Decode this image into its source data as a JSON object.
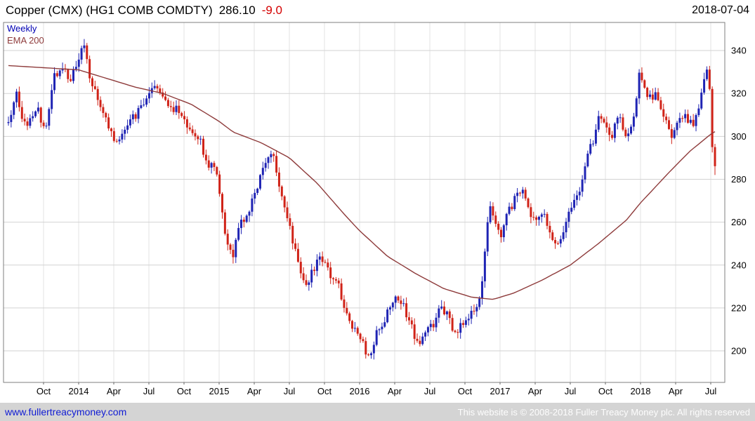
{
  "header": {
    "instrument": "Copper (CMX) (HG1 COMB COMDTY)",
    "price": "286.10",
    "change": "-9.0",
    "date": "2018-07-04"
  },
  "legend": {
    "frequency": "Weekly",
    "overlay": "EMA 200"
  },
  "footer": {
    "site_link": "www.fullertreacymoney.com",
    "copyright": "This website is © 2008-2018 Fuller Treacy Money plc. All rights reserved"
  },
  "chart_data": {
    "type": "candlestick",
    "title": "Copper (CMX) (HG1 COMB COMDTY)",
    "frequency": "weekly",
    "xlabel": "",
    "ylabel": "",
    "last_price": 286.1,
    "last_change": -9.0,
    "grid": true,
    "ylim": [
      185.3,
      353.1
    ],
    "y_ticks": [
      200,
      220,
      240,
      260,
      280,
      300,
      320,
      340
    ],
    "x_domain": [
      2013.465,
      2018.6
    ],
    "t_start": 2013.5,
    "t_end": 2018.53,
    "x_ticks": [
      {
        "t": 2013.75,
        "label": "Oct"
      },
      {
        "t": 2014.0,
        "label": "2014"
      },
      {
        "t": 2014.25,
        "label": "Apr"
      },
      {
        "t": 2014.5,
        "label": "Jul"
      },
      {
        "t": 2014.75,
        "label": "Oct"
      },
      {
        "t": 2015.0,
        "label": "2015"
      },
      {
        "t": 2015.25,
        "label": "Apr"
      },
      {
        "t": 2015.5,
        "label": "Jul"
      },
      {
        "t": 2015.75,
        "label": "Oct"
      },
      {
        "t": 2016.0,
        "label": "2016"
      },
      {
        "t": 2016.25,
        "label": "Apr"
      },
      {
        "t": 2016.5,
        "label": "Jul"
      },
      {
        "t": 2016.75,
        "label": "Oct"
      },
      {
        "t": 2017.0,
        "label": "2017"
      },
      {
        "t": 2017.25,
        "label": "Apr"
      },
      {
        "t": 2017.5,
        "label": "Jul"
      },
      {
        "t": 2017.75,
        "label": "Oct"
      },
      {
        "t": 2018.0,
        "label": "2018"
      },
      {
        "t": 2018.25,
        "label": "Apr"
      },
      {
        "t": 2018.5,
        "label": "Jul"
      }
    ],
    "colors": {
      "up": "#1f24b4",
      "down": "#d02318",
      "ema": "#8e3b3b",
      "grid_h": "#d2d2d2",
      "grid_v": "#e3e3e3",
      "frame": "#7f7f7f",
      "tick_text": "#000000"
    },
    "price_anchors": [
      [
        2013.5,
        306
      ],
      [
        2013.56,
        320
      ],
      [
        2013.62,
        304
      ],
      [
        2013.7,
        314
      ],
      [
        2013.76,
        303
      ],
      [
        2013.82,
        327
      ],
      [
        2013.88,
        334
      ],
      [
        2013.94,
        327
      ],
      [
        2014.0,
        334
      ],
      [
        2014.04,
        344
      ],
      [
        2014.08,
        325
      ],
      [
        2014.16,
        314
      ],
      [
        2014.22,
        302
      ],
      [
        2014.28,
        297
      ],
      [
        2014.34,
        306
      ],
      [
        2014.42,
        311
      ],
      [
        2014.5,
        320
      ],
      [
        2014.55,
        324
      ],
      [
        2014.62,
        316
      ],
      [
        2014.7,
        312
      ],
      [
        2014.78,
        305
      ],
      [
        2014.85,
        300
      ],
      [
        2014.92,
        288
      ],
      [
        2014.98,
        283
      ],
      [
        2015.03,
        259
      ],
      [
        2015.07,
        248
      ],
      [
        2015.1,
        244
      ],
      [
        2015.15,
        259
      ],
      [
        2015.21,
        265
      ],
      [
        2015.27,
        275
      ],
      [
        2015.33,
        289
      ],
      [
        2015.38,
        293
      ],
      [
        2015.44,
        272
      ],
      [
        2015.49,
        261
      ],
      [
        2015.53,
        249
      ],
      [
        2015.57,
        238
      ],
      [
        2015.62,
        231
      ],
      [
        2015.68,
        239
      ],
      [
        2015.73,
        243
      ],
      [
        2015.79,
        236
      ],
      [
        2015.85,
        230
      ],
      [
        2015.89,
        219
      ],
      [
        2015.94,
        212
      ],
      [
        2015.99,
        208
      ],
      [
        2016.04,
        201
      ],
      [
        2016.07,
        197
      ],
      [
        2016.12,
        208
      ],
      [
        2016.17,
        213
      ],
      [
        2016.23,
        223
      ],
      [
        2016.28,
        225
      ],
      [
        2016.33,
        218
      ],
      [
        2016.38,
        209
      ],
      [
        2016.42,
        203
      ],
      [
        2016.47,
        208
      ],
      [
        2016.53,
        213
      ],
      [
        2016.57,
        221
      ],
      [
        2016.63,
        216
      ],
      [
        2016.67,
        209
      ],
      [
        2016.73,
        212
      ],
      [
        2016.78,
        217
      ],
      [
        2016.83,
        222
      ],
      [
        2016.87,
        228
      ],
      [
        2016.9,
        254
      ],
      [
        2016.93,
        268
      ],
      [
        2016.97,
        261
      ],
      [
        2017.01,
        253
      ],
      [
        2017.05,
        263
      ],
      [
        2017.11,
        272
      ],
      [
        2017.16,
        276
      ],
      [
        2017.21,
        265
      ],
      [
        2017.26,
        260
      ],
      [
        2017.31,
        266
      ],
      [
        2017.36,
        255
      ],
      [
        2017.41,
        250
      ],
      [
        2017.45,
        257
      ],
      [
        2017.51,
        267
      ],
      [
        2017.56,
        273
      ],
      [
        2017.61,
        289
      ],
      [
        2017.66,
        298
      ],
      [
        2017.71,
        311
      ],
      [
        2017.75,
        306
      ],
      [
        2017.79,
        299
      ],
      [
        2017.83,
        311
      ],
      [
        2017.87,
        306
      ],
      [
        2017.91,
        299
      ],
      [
        2017.95,
        309
      ],
      [
        2017.99,
        329
      ],
      [
        2018.03,
        322
      ],
      [
        2018.07,
        317
      ],
      [
        2018.11,
        322
      ],
      [
        2018.15,
        312
      ],
      [
        2018.19,
        306
      ],
      [
        2018.23,
        300
      ],
      [
        2018.27,
        306
      ],
      [
        2018.32,
        309
      ],
      [
        2018.37,
        305
      ],
      [
        2018.41,
        311
      ],
      [
        2018.45,
        327
      ],
      [
        2018.48,
        331
      ],
      [
        2018.51,
        303
      ],
      [
        2018.53,
        286.1
      ]
    ],
    "ema_anchors": [
      [
        2013.5,
        333
      ],
      [
        2014.0,
        331
      ],
      [
        2014.2,
        327
      ],
      [
        2014.4,
        323
      ],
      [
        2014.6,
        320
      ],
      [
        2014.8,
        315
      ],
      [
        2015.0,
        307
      ],
      [
        2015.1,
        302
      ],
      [
        2015.3,
        297
      ],
      [
        2015.5,
        290
      ],
      [
        2015.7,
        278
      ],
      [
        2015.9,
        263
      ],
      [
        2016.0,
        256
      ],
      [
        2016.2,
        244
      ],
      [
        2016.4,
        236
      ],
      [
        2016.6,
        229
      ],
      [
        2016.8,
        225
      ],
      [
        2016.95,
        224
      ],
      [
        2017.1,
        227
      ],
      [
        2017.3,
        233
      ],
      [
        2017.5,
        240
      ],
      [
        2017.7,
        250
      ],
      [
        2017.9,
        261
      ],
      [
        2018.0,
        269
      ],
      [
        2018.2,
        283
      ],
      [
        2018.35,
        293
      ],
      [
        2018.5,
        301
      ],
      [
        2018.55,
        303
      ]
    ]
  }
}
